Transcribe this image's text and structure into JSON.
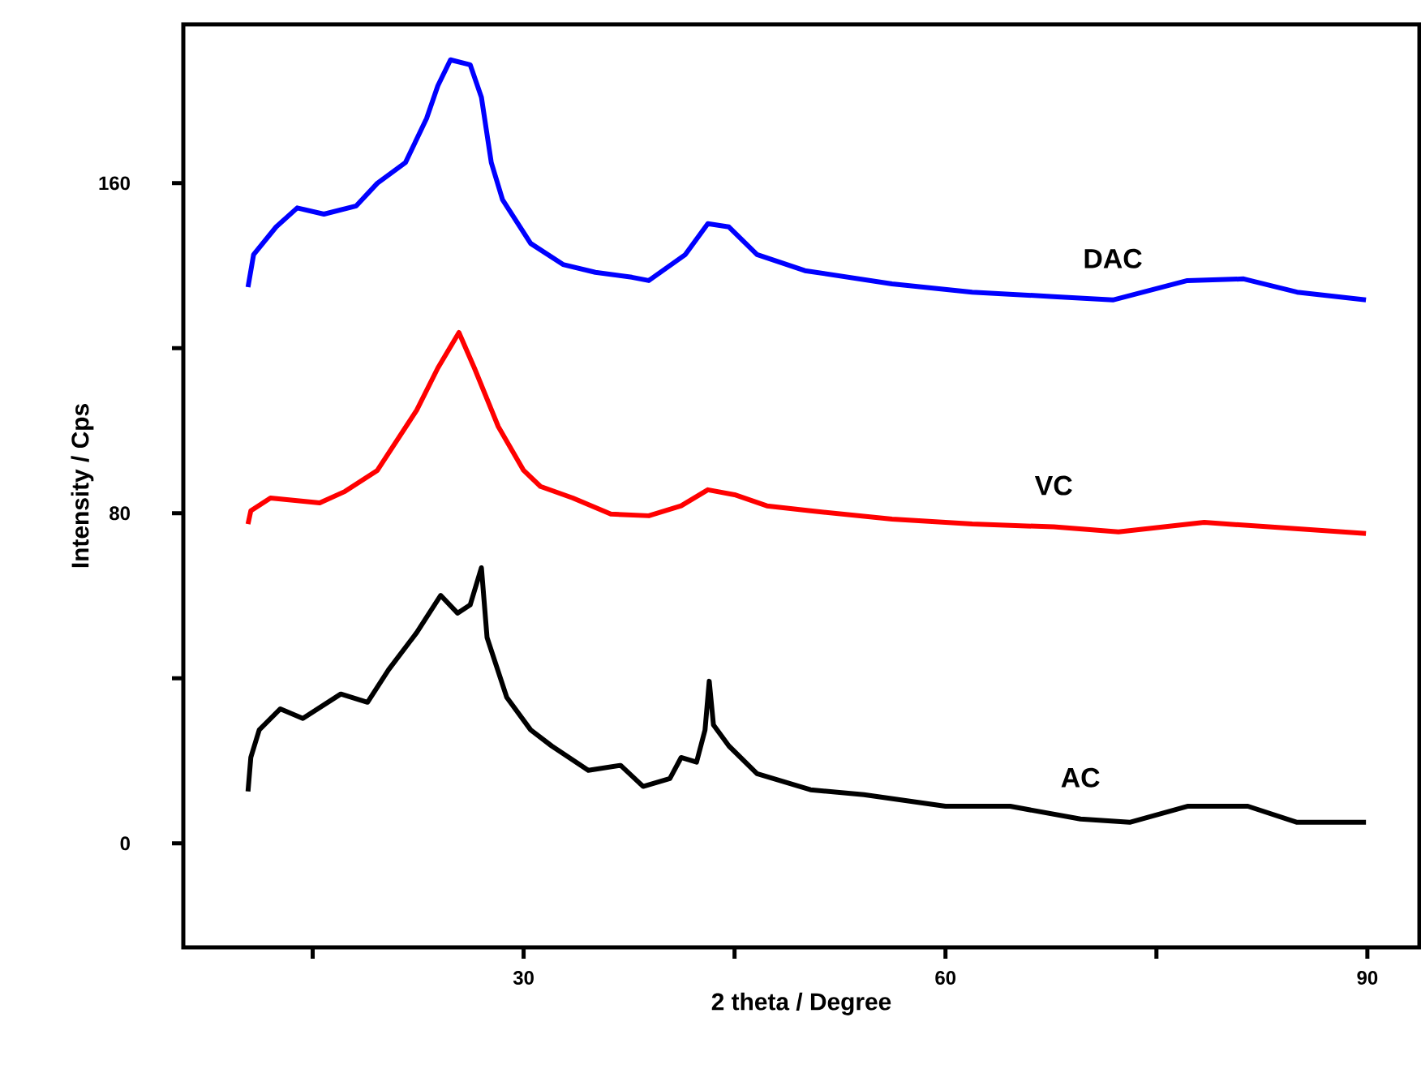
{
  "chart_data": {
    "type": "line",
    "xlabel": "2 theta / Degree",
    "ylabel": "Intensity / Cps",
    "xlim": [
      5.8,
      93.7
    ],
    "ylim": [
      -25.2,
      198.5
    ],
    "xticks": [
      {
        "value": 15,
        "label": null
      },
      30,
      {
        "value": 45,
        "label": null
      },
      60,
      {
        "value": 75,
        "label": null
      },
      90
    ],
    "yticks": [
      0,
      {
        "value": 40,
        "label": null
      },
      80,
      {
        "value": 120,
        "label": null
      },
      160
    ],
    "grid": false,
    "legend": false,
    "marker": "none",
    "line_style": "solid",
    "series": [
      {
        "name": "DAC",
        "color": "#0000ff",
        "x": [
          10.4,
          10.8,
          12.4,
          13.9,
          15.8,
          18.1,
          19.6,
          21.6,
          23.1,
          23.9,
          24.8,
          26.2,
          27.0,
          27.7,
          28.5,
          30.5,
          32.8,
          35.1,
          37.7,
          38.9,
          41.5,
          43.1,
          44.6,
          46.6,
          50.0,
          56.2,
          61.9,
          67.7,
          71.9,
          77.2,
          81.2,
          85.0,
          89.9
        ],
        "values": [
          134.8,
          142.7,
          149.4,
          154,
          152.5,
          154.5,
          160,
          165,
          175.7,
          183.6,
          189.9,
          188.7,
          180.8,
          165,
          156,
          145.4,
          140.3,
          138.4,
          137.2,
          136.4,
          142.7,
          150.2,
          149.4,
          142.7,
          138.8,
          135.6,
          133.6,
          132.5,
          131.7,
          136.4,
          136.8,
          133.6,
          131.7
        ]
      },
      {
        "name": "VC",
        "color": "#ff0000",
        "x": [
          10.4,
          10.6,
          12.0,
          15.5,
          17.3,
          19.6,
          22.4,
          23.9,
          25.4,
          26.5,
          28.2,
          30.0,
          31.2,
          33.5,
          36.2,
          38.9,
          41.2,
          43.1,
          45.0,
          47.3,
          50.4,
          56.2,
          61.9,
          67.7,
          72.3,
          78.4,
          83.0,
          89.9
        ],
        "values": [
          77.4,
          80.6,
          83.7,
          82.5,
          85.3,
          90.4,
          105,
          115.2,
          123.8,
          115.2,
          101,
          90.4,
          86.5,
          83.7,
          79.8,
          79.4,
          81.8,
          85.7,
          84.5,
          81.8,
          80.6,
          78.6,
          77.4,
          76.7,
          75.5,
          77.8,
          76.7,
          75.1
        ]
      },
      {
        "name": "AC",
        "color": "#000000",
        "x": [
          10.4,
          10.6,
          11.2,
          12.7,
          14.3,
          17.0,
          18.9,
          20.4,
          22.4,
          24.1,
          25.3,
          26.2,
          27.0,
          27.4,
          28.8,
          30.5,
          32.0,
          34.6,
          36.9,
          38.5,
          40.4,
          41.2,
          42.3,
          42.9,
          43.2,
          43.5,
          44.6,
          46.6,
          50.4,
          54.2,
          60.0,
          64.6,
          69.6,
          73.1,
          77.2,
          81.5,
          85.0,
          89.9
        ],
        "values": [
          12.6,
          20.8,
          27.5,
          32.6,
          30.3,
          36.2,
          34.2,
          42.1,
          51.1,
          60.1,
          55.8,
          57.8,
          66.8,
          49.9,
          35.4,
          27.5,
          23.6,
          17.7,
          18.9,
          13.8,
          15.7,
          20.8,
          19.7,
          27.5,
          39.3,
          28.7,
          23.6,
          16.9,
          13.0,
          11.8,
          9.0,
          9.0,
          5.9,
          5.1,
          9.0,
          9.0,
          5.1,
          5.1
        ]
      }
    ]
  }
}
